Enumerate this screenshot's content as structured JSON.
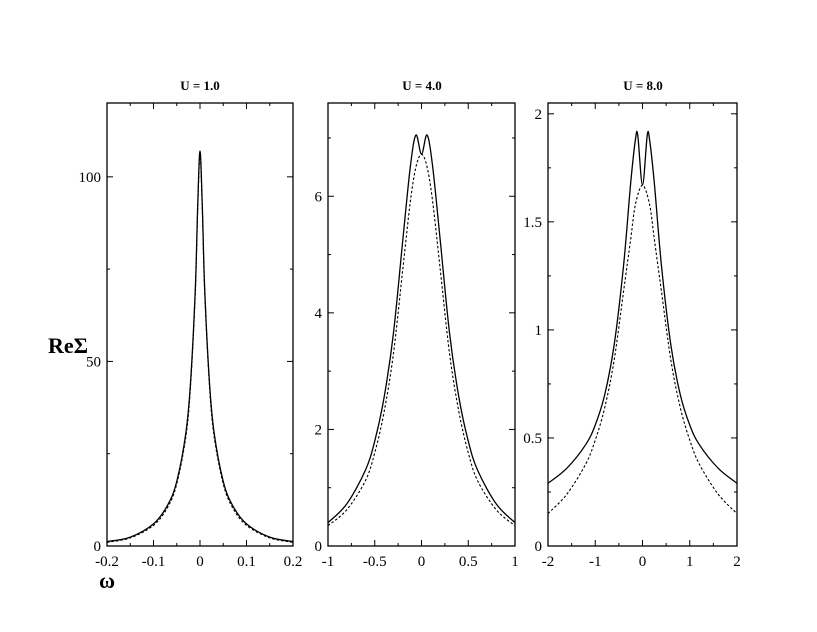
{
  "figure": {
    "ylabel": "ReΣ",
    "xlabel": "ω"
  },
  "chart_data": [
    {
      "type": "line",
      "title": "U = 1.0",
      "xlim": [
        -0.2,
        0.2
      ],
      "ylim": [
        0,
        120
      ],
      "xticks": [
        "-0.2",
        "-0.1",
        "0",
        "0.1",
        "0.2"
      ],
      "yticks": [
        "0",
        "50",
        "100"
      ],
      "ytick_values": [
        0,
        50,
        100
      ],
      "xtick_values": [
        -0.2,
        -0.1,
        0,
        0.1,
        0.2
      ],
      "series": [
        {
          "style": "solid",
          "x": [
            -0.2,
            -0.15,
            -0.1,
            -0.07,
            -0.05,
            -0.03,
            -0.02,
            -0.01,
            -0.005,
            0,
            0.005,
            0.01,
            0.02,
            0.03,
            0.05,
            0.07,
            0.1,
            0.15,
            0.2
          ],
          "y": [
            1.2,
            2.4,
            6.0,
            11.0,
            17.5,
            31,
            45,
            70,
            92,
            107,
            92,
            70,
            45,
            31,
            17.5,
            11.0,
            6.0,
            2.4,
            1.2
          ]
        },
        {
          "style": "dashed",
          "x": [
            -0.2,
            -0.15,
            -0.1,
            -0.07,
            -0.05,
            -0.03,
            -0.02,
            -0.01,
            -0.005,
            0,
            0.005,
            0.01,
            0.02,
            0.03,
            0.05,
            0.07,
            0.1,
            0.15,
            0.2
          ],
          "y": [
            1.0,
            2.2,
            5.6,
            10.4,
            16.8,
            30,
            44,
            69,
            91,
            106,
            91,
            69,
            44,
            30,
            16.8,
            10.4,
            5.6,
            2.2,
            1.0
          ]
        }
      ]
    },
    {
      "type": "line",
      "title": "U = 4.0",
      "xlim": [
        -1,
        1
      ],
      "ylim": [
        0,
        7.6
      ],
      "xticks": [
        "-1",
        "-0.5",
        "0",
        "0.5",
        "1"
      ],
      "yticks": [
        "0",
        "2",
        "4",
        "6"
      ],
      "ytick_values": [
        0,
        2,
        4,
        6
      ],
      "xtick_values": [
        -1,
        -0.5,
        0,
        0.5,
        1
      ],
      "series": [
        {
          "style": "solid",
          "x": [
            -1,
            -0.8,
            -0.6,
            -0.5,
            -0.4,
            -0.3,
            -0.2,
            -0.12,
            -0.06,
            0,
            0.06,
            0.12,
            0.2,
            0.3,
            0.4,
            0.5,
            0.6,
            0.8,
            1
          ],
          "y": [
            0.4,
            0.72,
            1.3,
            1.8,
            2.55,
            3.65,
            5.25,
            6.5,
            7.05,
            6.72,
            7.05,
            6.5,
            5.25,
            3.65,
            2.55,
            1.8,
            1.3,
            0.72,
            0.4
          ]
        },
        {
          "style": "dashed",
          "x": [
            -1,
            -0.8,
            -0.6,
            -0.5,
            -0.4,
            -0.3,
            -0.2,
            -0.12,
            -0.06,
            0,
            0.06,
            0.12,
            0.2,
            0.3,
            0.4,
            0.5,
            0.6,
            0.8,
            1
          ],
          "y": [
            0.35,
            0.62,
            1.12,
            1.6,
            2.3,
            3.3,
            4.75,
            5.9,
            6.5,
            6.72,
            6.5,
            5.9,
            4.75,
            3.3,
            2.3,
            1.6,
            1.12,
            0.62,
            0.35
          ]
        }
      ]
    },
    {
      "type": "line",
      "title": "U = 8.0",
      "xlim": [
        -2,
        2
      ],
      "ylim": [
        0,
        2.05
      ],
      "xticks": [
        "-2",
        "-1",
        "0",
        "1",
        "2"
      ],
      "yticks": [
        "0",
        "0.5",
        "1",
        "1.5",
        "2"
      ],
      "ytick_values": [
        0,
        0.5,
        1,
        1.5,
        2
      ],
      "xtick_values": [
        -2,
        -1,
        0,
        1,
        2
      ],
      "series": [
        {
          "style": "solid",
          "x": [
            -2,
            -1.6,
            -1.2,
            -1,
            -0.8,
            -0.6,
            -0.4,
            -0.25,
            -0.15,
            -0.1,
            0,
            0.1,
            0.15,
            0.25,
            0.4,
            0.6,
            0.8,
            1,
            1.2,
            1.6,
            2
          ],
          "y": [
            0.29,
            0.36,
            0.47,
            0.56,
            0.7,
            0.93,
            1.3,
            1.68,
            1.88,
            1.9,
            1.67,
            1.9,
            1.88,
            1.68,
            1.3,
            0.93,
            0.7,
            0.56,
            0.47,
            0.36,
            0.29
          ]
        },
        {
          "style": "dashed",
          "x": [
            -2,
            -1.6,
            -1.2,
            -1,
            -0.8,
            -0.6,
            -0.4,
            -0.25,
            -0.15,
            0,
            0.15,
            0.25,
            0.4,
            0.6,
            0.8,
            1,
            1.2,
            1.6,
            2
          ],
          "y": [
            0.15,
            0.24,
            0.38,
            0.49,
            0.64,
            0.86,
            1.18,
            1.42,
            1.58,
            1.67,
            1.58,
            1.42,
            1.18,
            0.86,
            0.64,
            0.49,
            0.38,
            0.24,
            0.15
          ]
        }
      ]
    }
  ]
}
